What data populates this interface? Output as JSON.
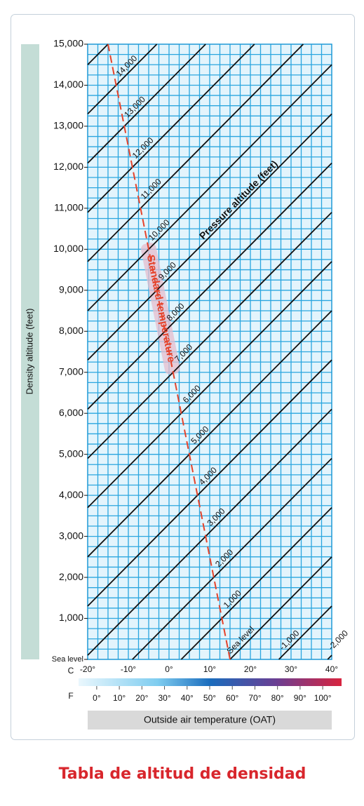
{
  "chart_data": {
    "type": "nomogram",
    "title": "Tabla de altitud de densidad",
    "ylabel": "Density altitude (feet)",
    "xlabel": "Outside air temperature (OAT)",
    "x_unit": "C",
    "x2_unit": "F",
    "xlim": [
      -20,
      40
    ],
    "ylim": [
      0,
      15000
    ],
    "x2lim": [
      -4,
      104
    ],
    "grid": {
      "x_step": 2.5,
      "y_step": 250
    },
    "yticks": [
      {
        "value": 0,
        "label": "Sea level"
      },
      {
        "value": 1000,
        "label": "1,000"
      },
      {
        "value": 2000,
        "label": "2,000"
      },
      {
        "value": 3000,
        "label": "3,000"
      },
      {
        "value": 4000,
        "label": "4,000"
      },
      {
        "value": 5000,
        "label": "5,000"
      },
      {
        "value": 6000,
        "label": "6,000"
      },
      {
        "value": 7000,
        "label": "7,000"
      },
      {
        "value": 8000,
        "label": "8,000"
      },
      {
        "value": 9000,
        "label": "9,000"
      },
      {
        "value": 10000,
        "label": "10,000"
      },
      {
        "value": 11000,
        "label": "11,000"
      },
      {
        "value": 12000,
        "label": "12,000"
      },
      {
        "value": 13000,
        "label": "13,000"
      },
      {
        "value": 14000,
        "label": "14,000"
      },
      {
        "value": 15000,
        "label": "15,000"
      }
    ],
    "xticks": [
      {
        "value": -20,
        "label": "-20°"
      },
      {
        "value": -10,
        "label": "-10°"
      },
      {
        "value": 0,
        "label": "0°"
      },
      {
        "value": 10,
        "label": "10°"
      },
      {
        "value": 20,
        "label": "20°"
      },
      {
        "value": 30,
        "label": "30°"
      },
      {
        "value": 40,
        "label": "40°"
      }
    ],
    "x2ticks": [
      {
        "value": 0,
        "label": "0°"
      },
      {
        "value": 10,
        "label": "10°"
      },
      {
        "value": 20,
        "label": "20°"
      },
      {
        "value": 30,
        "label": "30°"
      },
      {
        "value": 40,
        "label": "40°"
      },
      {
        "value": 50,
        "label": "50°"
      },
      {
        "value": 60,
        "label": "60°"
      },
      {
        "value": 70,
        "label": "70°"
      },
      {
        "value": 80,
        "label": "80°"
      },
      {
        "value": 90,
        "label": "90°"
      },
      {
        "value": 100,
        "label": "100°"
      }
    ],
    "standard_temperature": {
      "name": "Standard temperature",
      "color": "#e5432b",
      "x": [
        15,
        -15
      ],
      "values": [
        0,
        15000
      ]
    },
    "pressure_altitude": {
      "label": "Pressure altitude (feet)",
      "color": "#111111",
      "lines": [
        {
          "name": null,
          "x": [
            -20,
            -15
          ],
          "values": [
            14500,
            15000
          ]
        },
        {
          "name": "14,000",
          "x": [
            -20,
            -3
          ],
          "values": [
            13300,
            15000
          ]
        },
        {
          "name": "13,000",
          "x": [
            -20,
            9
          ],
          "values": [
            12100,
            15000
          ]
        },
        {
          "name": "12,000",
          "x": [
            -20,
            21
          ],
          "values": [
            10900,
            15000
          ]
        },
        {
          "name": "11,000",
          "x": [
            -20,
            33
          ],
          "values": [
            9700,
            15000
          ]
        },
        {
          "name": "10,000",
          "x": [
            -20,
            40
          ],
          "values": [
            8500,
            14500
          ]
        },
        {
          "name": "9,000",
          "x": [
            -20,
            40
          ],
          "values": [
            7300,
            13300
          ]
        },
        {
          "name": "8,000",
          "x": [
            -20,
            40
          ],
          "values": [
            6100,
            12100
          ]
        },
        {
          "name": "7,000",
          "x": [
            -20,
            40
          ],
          "values": [
            4900,
            10900
          ]
        },
        {
          "name": "6,000",
          "x": [
            -20,
            40
          ],
          "values": [
            3700,
            9700
          ]
        },
        {
          "name": "5,000",
          "x": [
            -20,
            40
          ],
          "values": [
            2500,
            8500
          ]
        },
        {
          "name": "4,000",
          "x": [
            -20,
            40
          ],
          "values": [
            1300,
            7300
          ]
        },
        {
          "name": "3,000",
          "x": [
            -20,
            40
          ],
          "values": [
            100,
            6100
          ]
        },
        {
          "name": "2,000",
          "x": [
            -9,
            40
          ],
          "values": [
            0,
            4900
          ]
        },
        {
          "name": "1,000",
          "x": [
            3,
            40
          ],
          "values": [
            0,
            3700
          ]
        },
        {
          "name": "Sea level",
          "x": [
            15,
            40
          ],
          "values": [
            0,
            2500
          ]
        },
        {
          "name": "-1,000",
          "x": [
            27,
            40
          ],
          "values": [
            0,
            1300
          ]
        },
        {
          "name": "-2,000",
          "x": [
            39,
            40
          ],
          "values": [
            0,
            100
          ]
        }
      ]
    }
  }
}
